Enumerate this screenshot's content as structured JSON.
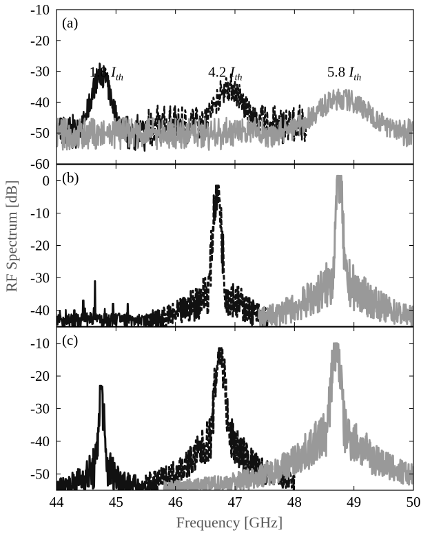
{
  "chart_data": {
    "type": "line",
    "xlabel": "Frequency [GHz]",
    "ylabel": "RF Spectrum [dB]",
    "xlim": [
      44,
      50
    ],
    "x_ticks": [
      "44",
      "45",
      "46",
      "47",
      "48",
      "49",
      "50"
    ],
    "colors": {
      "black": "#111111",
      "gray": "#999999",
      "frame": "#000000"
    },
    "panels": [
      {
        "label": "(a)",
        "ylim": [
          -60,
          -10
        ],
        "y_ticks": [
          "-10",
          "-20",
          "-30",
          "-40",
          "-50",
          "-60"
        ],
        "y_tick_values": [
          -10,
          -20,
          -30,
          -40,
          -50,
          -60
        ],
        "annotations": [
          {
            "main": "1.8 ",
            "italic": "I",
            "sub": "th",
            "x": 44.55,
            "y": -30
          },
          {
            "main": "4.2 ",
            "italic": "I",
            "sub": "th",
            "x": 46.55,
            "y": -30
          },
          {
            "main": "5.8 ",
            "italic": "I",
            "sub": "th",
            "x": 48.55,
            "y": -30
          }
        ],
        "series": [
          {
            "color": "black",
            "style": "solid",
            "width": 2.5,
            "kind": "noise",
            "x_range": [
              44.0,
              45.5
            ],
            "base": -52,
            "amp": 8,
            "peaks": [
              [
                44.75,
                -31,
                0.25
              ]
            ]
          },
          {
            "color": "black",
            "style": "dashed",
            "width": 2.5,
            "kind": "noise",
            "x_range": [
              45.5,
              48.2
            ],
            "base": -50,
            "amp": 9,
            "peaks": [
              [
                46.9,
                -35,
                0.35
              ]
            ]
          },
          {
            "color": "gray",
            "style": "solid",
            "width": 2.5,
            "kind": "noise",
            "x_range": [
              44.0,
              50.0
            ],
            "base": -52,
            "amp": 7,
            "peaks": [
              [
                48.8,
                -39,
                0.7
              ]
            ]
          }
        ]
      },
      {
        "label": "(b)",
        "ylim": [
          -45,
          5
        ],
        "y_ticks": [
          "0",
          "-10",
          "-20",
          "-30",
          "-40"
        ],
        "y_tick_values": [
          0,
          -10,
          -20,
          -30,
          -40
        ],
        "series": [
          {
            "color": "black",
            "style": "solid",
            "width": 2.5,
            "kind": "spiky",
            "x_range": [
              44.0,
              45.8
            ],
            "floor": -45,
            "spikes": [
              [
                44.65,
                -31
              ],
              [
                44.45,
                -37
              ],
              [
                44.95,
                -38
              ],
              [
                44.3,
                -40
              ],
              [
                45.2,
                -38
              ],
              [
                45.05,
                -41
              ],
              [
                45.45,
                -42
              ]
            ]
          },
          {
            "color": "black",
            "style": "dashed",
            "width": 3,
            "kind": "peak",
            "x_range": [
              45.5,
              47.6
            ],
            "floor": -45,
            "center": 46.7,
            "peak": -1.5,
            "width_ghz": 0.12,
            "skirt": -30,
            "skirt_width": 0.5
          },
          {
            "color": "gray",
            "style": "solid",
            "width": 3,
            "kind": "peak",
            "x_range": [
              47.4,
              50.0
            ],
            "floor": -45,
            "center": 48.75,
            "peak": 1.5,
            "width_ghz": 0.1,
            "skirt": -28,
            "skirt_width": 0.7
          }
        ]
      },
      {
        "label": "(c)",
        "ylim": [
          -55,
          -5
        ],
        "y_ticks": [
          "-10",
          "-20",
          "-30",
          "-40",
          "-50"
        ],
        "y_tick_values": [
          -10,
          -20,
          -30,
          -40,
          -50
        ],
        "series": [
          {
            "color": "black",
            "style": "solid",
            "width": 3,
            "kind": "peak",
            "x_range": [
              44.0,
              45.7
            ],
            "floor": -55,
            "center": 44.75,
            "peak": -23,
            "width_ghz": 0.07,
            "skirt": -45,
            "skirt_width": 0.3
          },
          {
            "color": "black",
            "style": "dashed",
            "width": 3,
            "kind": "peak",
            "x_range": [
              45.5,
              48.0
            ],
            "floor": -55,
            "center": 46.75,
            "peak": -11.5,
            "width_ghz": 0.15,
            "skirt": -33,
            "skirt_width": 0.55
          },
          {
            "color": "gray",
            "style": "solid",
            "width": 3,
            "kind": "peak",
            "x_range": [
              45.8,
              50.0
            ],
            "floor": -55,
            "center": 48.7,
            "peak": -10,
            "width_ghz": 0.15,
            "skirt": -33,
            "skirt_width": 0.8
          }
        ]
      }
    ]
  }
}
